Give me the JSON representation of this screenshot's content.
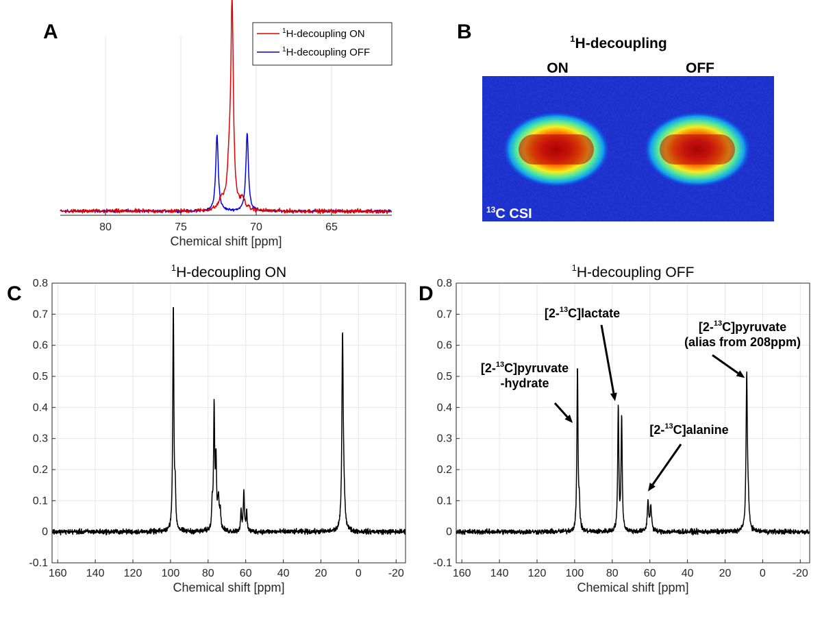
{
  "panels": {
    "a": "A",
    "b": "B",
    "c": "C",
    "d": "D"
  },
  "colors": {
    "on": "#e00000",
    "off": "#0000e0",
    "spectrum": "#000000",
    "grid": "#e6e6e6"
  },
  "chart_data": [
    {
      "id": "A",
      "type": "line",
      "xlabel": "Chemical shift [ppm]",
      "ylabel": "",
      "xlim": [
        83,
        61
      ],
      "ylim": [
        -0.02,
        1.0
      ],
      "xticks": [
        80,
        75,
        70,
        65
      ],
      "xtick_labels": [
        "80",
        "75",
        "70",
        "65"
      ],
      "legend": {
        "placement": "top-right",
        "entries": [
          {
            "sup": "1",
            "text": "H-decoupling ON"
          },
          {
            "sup": "1",
            "text": "H-decoupling OFF"
          }
        ]
      },
      "series": [
        {
          "name": "1H-decoupling ON",
          "color": "#e00000",
          "peaks": [
            {
              "x": 71.6,
              "h": 1.0,
              "w": 0.1
            },
            {
              "x": 71.8,
              "h": 0.18,
              "w": 0.14
            },
            {
              "x": 70.9,
              "h": 0.05,
              "w": 0.2
            },
            {
              "x": 72.3,
              "h": 0.05,
              "w": 0.2
            }
          ]
        },
        {
          "name": "1H-decoupling OFF",
          "color": "#0000e0",
          "peaks": [
            {
              "x": 72.6,
              "h": 0.38,
              "w": 0.1
            },
            {
              "x": 70.6,
              "h": 0.39,
              "w": 0.1
            }
          ]
        }
      ]
    },
    {
      "id": "C",
      "type": "line",
      "title_sup": "1",
      "title": "H-decoupling ON",
      "xlabel": "Chemical shift [ppm]",
      "xlim": [
        163,
        -25
      ],
      "ylim": [
        -0.1,
        0.8
      ],
      "xticks": [
        160,
        140,
        120,
        100,
        80,
        60,
        40,
        20,
        0,
        -20
      ],
      "xtick_labels": [
        "160",
        "140",
        "120",
        "100",
        "80",
        "60",
        "40",
        "20",
        "0",
        "-20"
      ],
      "yticks": [
        -0.1,
        0,
        0.1,
        0.2,
        0.3,
        0.4,
        0.5,
        0.6,
        0.7,
        0.8
      ],
      "ytick_labels": [
        "-0.1",
        "0",
        "0.1",
        "0.2",
        "0.3",
        "0.4",
        "0.5",
        "0.6",
        "0.7",
        "0.8"
      ],
      "series": [
        {
          "name": "1H-decoupling ON",
          "color": "#000000",
          "peaks": [
            {
              "x": 98.5,
              "h": 0.73,
              "w": 0.35
            },
            {
              "x": 97.5,
              "h": 0.12,
              "w": 0.3
            },
            {
              "x": 76.8,
              "h": 0.4,
              "w": 0.35
            },
            {
              "x": 75.8,
              "h": 0.21,
              "w": 0.35
            },
            {
              "x": 77.8,
              "h": 0.08,
              "w": 0.3
            },
            {
              "x": 74.5,
              "h": 0.1,
              "w": 0.5
            },
            {
              "x": 73.5,
              "h": 0.05,
              "w": 0.4
            },
            {
              "x": 61.0,
              "h": 0.13,
              "w": 0.35
            },
            {
              "x": 62.5,
              "h": 0.07,
              "w": 0.3
            },
            {
              "x": 59.5,
              "h": 0.07,
              "w": 0.3
            },
            {
              "x": 8.5,
              "h": 0.61,
              "w": 0.4
            },
            {
              "x": 7.8,
              "h": 0.1,
              "w": 0.6
            }
          ]
        }
      ]
    },
    {
      "id": "D",
      "type": "line",
      "title_sup": "1",
      "title": "H-decoupling OFF",
      "xlabel": "Chemical shift [ppm]",
      "xlim": [
        163,
        -25
      ],
      "ylim": [
        -0.1,
        0.8
      ],
      "xticks": [
        160,
        140,
        120,
        100,
        80,
        60,
        40,
        20,
        0,
        -20
      ],
      "xtick_labels": [
        "160",
        "140",
        "120",
        "100",
        "80",
        "60",
        "40",
        "20",
        "0",
        "-20"
      ],
      "yticks": [
        -0.1,
        0,
        0.1,
        0.2,
        0.3,
        0.4,
        0.5,
        0.6,
        0.7,
        0.8
      ],
      "ytick_labels": [
        "-0.1",
        "0",
        "0.1",
        "0.2",
        "0.3",
        "0.4",
        "0.5",
        "0.6",
        "0.7",
        "0.8"
      ],
      "series": [
        {
          "name": "1H-decoupling OFF",
          "color": "#000000",
          "peaks": [
            {
              "x": 98.5,
              "h": 0.53,
              "w": 0.35
            },
            {
              "x": 97.5,
              "h": 0.08,
              "w": 0.3
            },
            {
              "x": 76.8,
              "h": 0.4,
              "w": 0.35
            },
            {
              "x": 75.0,
              "h": 0.37,
              "w": 0.35
            },
            {
              "x": 61.0,
              "h": 0.1,
              "w": 0.4
            },
            {
              "x": 59.5,
              "h": 0.08,
              "w": 0.5
            },
            {
              "x": 8.5,
              "h": 0.48,
              "w": 0.4
            },
            {
              "x": 7.8,
              "h": 0.08,
              "w": 0.6
            }
          ]
        }
      ],
      "annotations": [
        {
          "lines": [
            [
              "[2-",
              "13",
              "C]pyruvate"
            ],
            [
              "-hydrate"
            ]
          ],
          "arrow_to": {
            "x": 101,
            "y": 0.35
          }
        },
        {
          "lines": [
            [
              "[2-",
              "13",
              "C]lactate"
            ]
          ],
          "arrow_to": {
            "x": 78.5,
            "y": 0.42
          }
        },
        {
          "lines": [
            [
              "[2-",
              "13",
              "C]alanine"
            ]
          ],
          "arrow_to": {
            "x": 61,
            "y": 0.13
          }
        },
        {
          "lines": [
            [
              "[2-",
              "13",
              "C]pyruvate"
            ],
            [
              "(alias from 208ppm)"
            ]
          ],
          "arrow_to": {
            "x": 9.5,
            "y": 0.495
          }
        }
      ]
    }
  ],
  "csi": {
    "title_sup": "1",
    "title": "H-decoupling",
    "on_label": "ON",
    "off_label": "OFF",
    "corner_sup": "13",
    "corner_label": "C CSI",
    "blobs": [
      {
        "column": "ON",
        "intensity": 1.0
      },
      {
        "column": "OFF",
        "intensity": 0.95
      }
    ]
  }
}
